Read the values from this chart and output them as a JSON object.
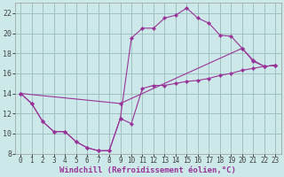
{
  "background_color": "#cce8e8",
  "grid_color": "#99bbbb",
  "line_color": "#993399",
  "marker_color": "#993399",
  "xlabel": "Windchill (Refroidissement éolien,°C)",
  "xlabel_fontsize": 6.5,
  "xtick_fontsize": 5.5,
  "ytick_fontsize": 6.0,
  "xlim": [
    -0.5,
    23.5
  ],
  "ylim": [
    8,
    23
  ],
  "yticks": [
    8,
    10,
    12,
    14,
    16,
    18,
    20,
    22
  ],
  "xticks": [
    0,
    1,
    2,
    3,
    4,
    5,
    6,
    7,
    8,
    9,
    10,
    11,
    12,
    13,
    14,
    15,
    16,
    17,
    18,
    19,
    20,
    21,
    22,
    23
  ],
  "line1_x": [
    0,
    1,
    2,
    3,
    4,
    5,
    6,
    7,
    8,
    9,
    10,
    11,
    12,
    13,
    14,
    15,
    16,
    17,
    18,
    19,
    20,
    21,
    22,
    23
  ],
  "line1_y": [
    14.0,
    13.0,
    11.2,
    10.2,
    10.2,
    9.2,
    8.6,
    8.3,
    8.3,
    11.5,
    11.0,
    14.5,
    14.8,
    14.8,
    15.0,
    15.2,
    15.3,
    15.5,
    15.8,
    16.0,
    16.3,
    16.5,
    16.7,
    16.8
  ],
  "line2_x": [
    0,
    1,
    2,
    3,
    4,
    5,
    6,
    7,
    8,
    9,
    10,
    11,
    12,
    13,
    14,
    15,
    16,
    17,
    18,
    19,
    20,
    21,
    22,
    23
  ],
  "line2_y": [
    14.0,
    13.0,
    11.2,
    10.2,
    10.2,
    9.2,
    8.6,
    8.3,
    8.3,
    11.5,
    19.5,
    20.5,
    20.5,
    21.5,
    21.8,
    22.5,
    21.5,
    21.0,
    19.8,
    19.7,
    18.5,
    17.2,
    16.7,
    16.8
  ],
  "line3_x": [
    0,
    9,
    20,
    21,
    22,
    23
  ],
  "line3_y": [
    14.0,
    13.0,
    18.5,
    17.3,
    16.7,
    16.8
  ]
}
